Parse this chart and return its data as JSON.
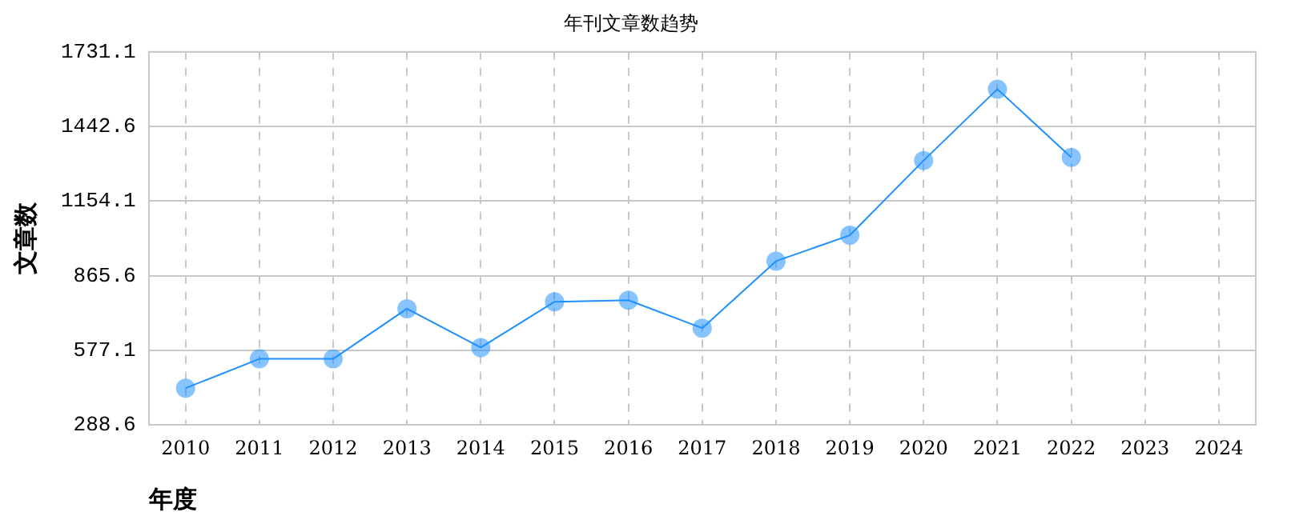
{
  "chart_data": {
    "type": "line",
    "title": "年刊文章数趋势",
    "xlabel": "年度",
    "ylabel": "文章数",
    "categories": [
      "2010",
      "2011",
      "2012",
      "2013",
      "2014",
      "2015",
      "2016",
      "2017",
      "2018",
      "2019",
      "2020",
      "2021",
      "2022",
      "2023",
      "2024"
    ],
    "series": [
      {
        "color": "#1e90ff",
        "values": [
          431,
          544,
          544,
          738,
          588,
          765,
          771,
          663,
          922,
          1022,
          1311,
          1587,
          1323,
          null,
          null
        ]
      }
    ],
    "ylim": [
      288.6,
      1731.1
    ],
    "yticks": [
      288.6,
      577.1,
      865.6,
      1154.1,
      1442.6,
      1731.1
    ],
    "grid": true,
    "legend": false,
    "marker": "circle",
    "line_style": "solid"
  }
}
